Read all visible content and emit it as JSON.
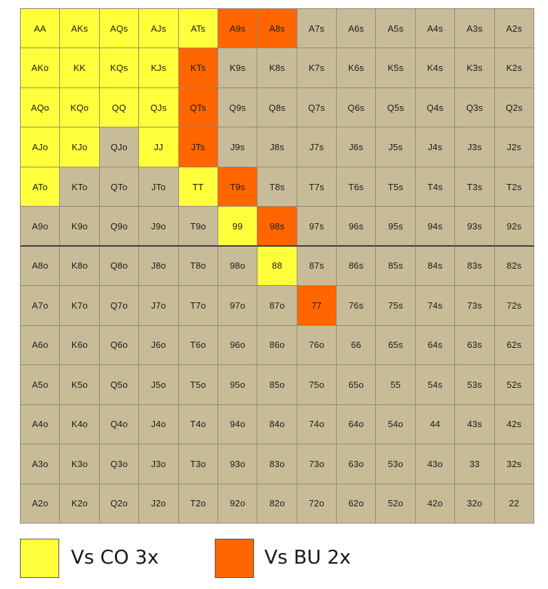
{
  "colors": {
    "none": "#c8bc98",
    "vs_co_3x": "#ffff3b",
    "vs_bu_2x": "#ff6600"
  },
  "grid": {
    "rows": [
      [
        "AA",
        "AKs",
        "AQs",
        "AJs",
        "ATs",
        "A9s",
        "A8s",
        "A7s",
        "A6s",
        "A5s",
        "A4s",
        "A3s",
        "A2s"
      ],
      [
        "AKo",
        "KK",
        "KQs",
        "KJs",
        "KTs",
        "K9s",
        "K8s",
        "K7s",
        "K6s",
        "K5s",
        "K4s",
        "K3s",
        "K2s"
      ],
      [
        "AQo",
        "KQo",
        "QQ",
        "QJs",
        "QTs",
        "Q9s",
        "Q8s",
        "Q7s",
        "Q6s",
        "Q5s",
        "Q4s",
        "Q3s",
        "Q2s"
      ],
      [
        "AJo",
        "KJo",
        "QJo",
        "JJ",
        "JTs",
        "J9s",
        "J8s",
        "J7s",
        "J6s",
        "J5s",
        "J4s",
        "J3s",
        "J2s"
      ],
      [
        "ATo",
        "KTo",
        "QTo",
        "JTo",
        "TT",
        "T9s",
        "T8s",
        "T7s",
        "T6s",
        "T5s",
        "T4s",
        "T3s",
        "T2s"
      ],
      [
        "A9o",
        "K9o",
        "Q9o",
        "J9o",
        "T9o",
        "99",
        "98s",
        "97s",
        "96s",
        "95s",
        "94s",
        "93s",
        "92s"
      ],
      [
        "A8o",
        "K8o",
        "Q8o",
        "J8o",
        "T8o",
        "98o",
        "88",
        "87s",
        "86s",
        "85s",
        "84s",
        "83s",
        "82s"
      ],
      [
        "A7o",
        "K7o",
        "Q7o",
        "J7o",
        "T7o",
        "97o",
        "87o",
        "77",
        "76s",
        "75s",
        "74s",
        "73s",
        "72s"
      ],
      [
        "A6o",
        "K6o",
        "Q6o",
        "J6o",
        "T6o",
        "96o",
        "86o",
        "76o",
        "66",
        "65s",
        "64s",
        "63s",
        "62s"
      ],
      [
        "A5o",
        "K5o",
        "Q5o",
        "J5o",
        "T5o",
        "95o",
        "85o",
        "75o",
        "65o",
        "55",
        "54s",
        "53s",
        "52s"
      ],
      [
        "A4o",
        "K4o",
        "Q4o",
        "J4o",
        "T4o",
        "94o",
        "84o",
        "74o",
        "64o",
        "54o",
        "44",
        "43s",
        "42s"
      ],
      [
        "A3o",
        "K3o",
        "Q3o",
        "J3o",
        "T3o",
        "93o",
        "83o",
        "73o",
        "63o",
        "53o",
        "43o",
        "33",
        "32s"
      ],
      [
        "A2o",
        "K2o",
        "Q2o",
        "J2o",
        "T2o",
        "92o",
        "82o",
        "72o",
        "62o",
        "52o",
        "42o",
        "32o",
        "22"
      ]
    ],
    "fills": [
      [
        "co",
        "co",
        "co",
        "co",
        "co",
        "bu",
        "bu",
        "none",
        "none",
        "none",
        "none",
        "none",
        "none"
      ],
      [
        "co",
        "co",
        "co",
        "co",
        "bu",
        "none",
        "none",
        "none",
        "none",
        "none",
        "none",
        "none",
        "none"
      ],
      [
        "co",
        "co",
        "co",
        "co",
        "bu",
        "none",
        "none",
        "none",
        "none",
        "none",
        "none",
        "none",
        "none"
      ],
      [
        "co",
        "co",
        "none",
        "co",
        "bu",
        "none",
        "none",
        "none",
        "none",
        "none",
        "none",
        "none",
        "none"
      ],
      [
        "co",
        "none",
        "none",
        "none",
        "co",
        "bu",
        "none",
        "none",
        "none",
        "none",
        "none",
        "none",
        "none"
      ],
      [
        "none",
        "none",
        "none",
        "none",
        "none",
        "co",
        "bu",
        "none",
        "none",
        "none",
        "none",
        "none",
        "none"
      ],
      [
        "none",
        "none",
        "none",
        "none",
        "none",
        "none",
        "co",
        "none",
        "none",
        "none",
        "none",
        "none",
        "none"
      ],
      [
        "none",
        "none",
        "none",
        "none",
        "none",
        "none",
        "none",
        "bu",
        "none",
        "none",
        "none",
        "none",
        "none"
      ],
      [
        "none",
        "none",
        "none",
        "none",
        "none",
        "none",
        "none",
        "none",
        "none",
        "none",
        "none",
        "none",
        "none"
      ],
      [
        "none",
        "none",
        "none",
        "none",
        "none",
        "none",
        "none",
        "none",
        "none",
        "none",
        "none",
        "none",
        "none"
      ],
      [
        "none",
        "none",
        "none",
        "none",
        "none",
        "none",
        "none",
        "none",
        "none",
        "none",
        "none",
        "none",
        "none"
      ],
      [
        "none",
        "none",
        "none",
        "none",
        "none",
        "none",
        "none",
        "none",
        "none",
        "none",
        "none",
        "none",
        "none"
      ],
      [
        "none",
        "none",
        "none",
        "none",
        "none",
        "none",
        "none",
        "none",
        "none",
        "none",
        "none",
        "none",
        "none"
      ]
    ]
  },
  "legend": {
    "items": [
      {
        "label": "Vs CO 3x",
        "color": "#ffff3b"
      },
      {
        "label": "Vs BU 2x",
        "color": "#ff6600"
      }
    ]
  }
}
